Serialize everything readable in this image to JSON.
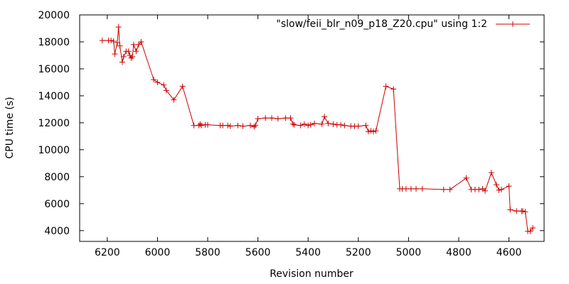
{
  "chart_data": {
    "type": "line",
    "title": "",
    "xlabel": "Revision number",
    "ylabel": "CPU time (s)",
    "xlim": [
      6310,
      4460
    ],
    "ylim": [
      3200,
      20000
    ],
    "x_reversed": true,
    "grid": false,
    "legend_position": "top-right",
    "xticks": [
      6200,
      6000,
      5800,
      5600,
      5400,
      5200,
      5000,
      4800,
      4600
    ],
    "yticks": [
      4000,
      6000,
      8000,
      10000,
      12000,
      14000,
      16000,
      18000,
      20000
    ],
    "line_color": "#cc0000",
    "marker": "plus",
    "series": [
      {
        "name": "\"slow/feii_blr_n09_p18_Z20.cpu\" using 1:2",
        "x": [
          6220,
          6195,
          6185,
          6175,
          6170,
          6160,
          6155,
          6150,
          6140,
          6135,
          6125,
          6115,
          6110,
          6105,
          6100,
          6095,
          6085,
          6075,
          6065,
          6015,
          6000,
          5975,
          5965,
          5935,
          5900,
          5855,
          5835,
          5830,
          5825,
          5810,
          5800,
          5750,
          5740,
          5720,
          5710,
          5680,
          5660,
          5630,
          5615,
          5610,
          5600,
          5570,
          5545,
          5520,
          5490,
          5470,
          5460,
          5455,
          5430,
          5415,
          5400,
          5390,
          5375,
          5345,
          5335,
          5320,
          5300,
          5285,
          5270,
          5255,
          5230,
          5215,
          5200,
          5170,
          5160,
          5150,
          5140,
          5130,
          5090,
          5060,
          5035,
          5025,
          5010,
          4990,
          4970,
          4945,
          4860,
          4835,
          4770,
          4750,
          4735,
          4720,
          4705,
          4695,
          4670,
          4650,
          4640,
          4630,
          4600,
          4595,
          4570,
          4550,
          4545,
          4535,
          4525,
          4515,
          4505
        ],
        "y": [
          18100,
          18100,
          18100,
          18050,
          17100,
          17950,
          19100,
          17700,
          16500,
          16900,
          17300,
          17300,
          17000,
          16800,
          16900,
          17800,
          17300,
          17800,
          18000,
          15200,
          15000,
          14800,
          14400,
          13700,
          14700,
          11800,
          11800,
          11900,
          11800,
          11850,
          11850,
          11800,
          11800,
          11800,
          11750,
          11800,
          11750,
          11800,
          11700,
          11800,
          12300,
          12350,
          12350,
          12300,
          12350,
          12350,
          11900,
          11850,
          11800,
          11900,
          11800,
          11850,
          11950,
          11900,
          12450,
          11950,
          11900,
          11850,
          11850,
          11800,
          11750,
          11750,
          11750,
          11800,
          11350,
          11400,
          11350,
          11400,
          14700,
          14500,
          7100,
          7100,
          7100,
          7100,
          7100,
          7100,
          7050,
          7050,
          7900,
          7050,
          7050,
          7050,
          7100,
          6950,
          8300,
          7400,
          7000,
          7050,
          7300,
          5550,
          5450,
          5450,
          5450,
          5400,
          3950,
          3950,
          4200
        ]
      }
    ]
  }
}
